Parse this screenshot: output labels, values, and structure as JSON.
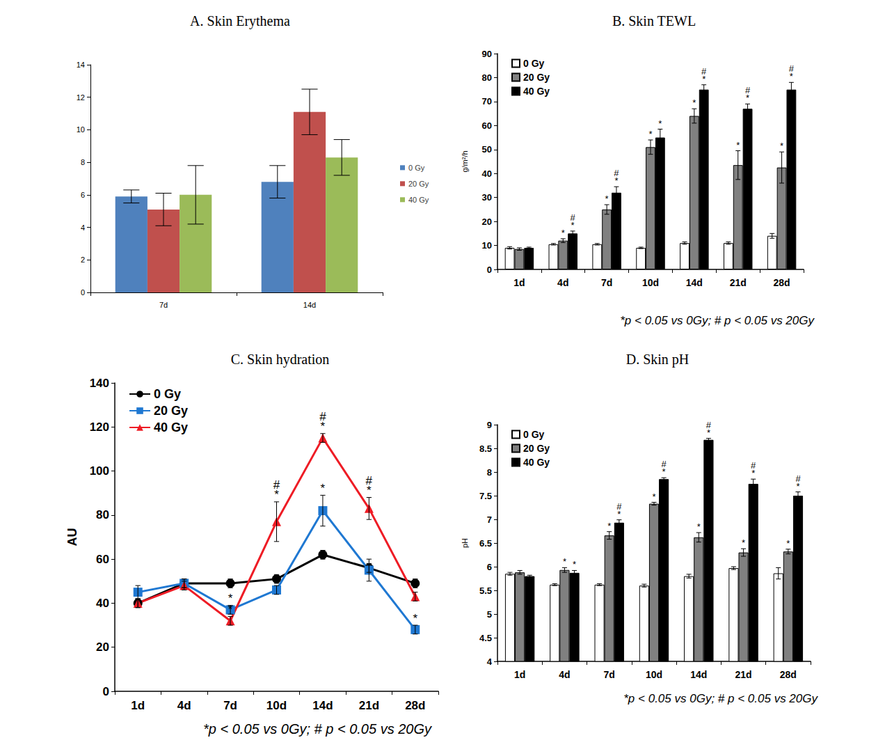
{
  "chart_data": [
    {
      "type": "bar",
      "title": "A. Skin Erythema",
      "categories": [
        "7d",
        "14d"
      ],
      "series": [
        {
          "name": "0 Gy",
          "color": "#4f81bd",
          "values": [
            5.9,
            6.8
          ],
          "errors": [
            0.4,
            1.0
          ]
        },
        {
          "name": "20 Gy",
          "color": "#c0504d",
          "values": [
            5.1,
            11.1
          ],
          "errors": [
            1.0,
            1.4
          ]
        },
        {
          "name": "40 Gy",
          "color": "#9bbb59",
          "values": [
            6.0,
            8.3
          ],
          "errors": [
            1.8,
            1.1
          ]
        }
      ],
      "ylim": [
        0,
        14
      ],
      "yticks": [
        0,
        2,
        4,
        6,
        8,
        10,
        12,
        14
      ],
      "grid": false,
      "legend": "right"
    },
    {
      "type": "bar",
      "title": "B. Skin TEWL",
      "ylabel": "g/m²/h",
      "footnote": "*p < 0.05 vs 0Gy; # p < 0.05 vs 20Gy",
      "categories": [
        "1d",
        "4d",
        "7d",
        "10d",
        "14d",
        "21d",
        "28d"
      ],
      "series": [
        {
          "name": "0 Gy",
          "color": "#ffffff",
          "values": [
            9,
            10.5,
            10.5,
            9,
            11,
            11,
            14
          ],
          "errors": [
            0.5,
            0.3,
            0.3,
            0.3,
            0.5,
            0.5,
            1
          ]
        },
        {
          "name": "20 Gy",
          "color": "#808080",
          "values": [
            8.5,
            12,
            25,
            51,
            64,
            43.5,
            42.5
          ],
          "errors": [
            0.5,
            0.8,
            2,
            3,
            3,
            6,
            6.5
          ],
          "annotations": [
            null,
            "*",
            "*",
            "*",
            "*",
            "*",
            "*"
          ]
        },
        {
          "name": "40 Gy",
          "color": "#000000",
          "values": [
            9,
            15,
            32,
            55,
            75,
            67,
            75
          ],
          "errors": [
            0.3,
            1,
            2.5,
            3.5,
            2,
            2,
            3
          ],
          "annotations": [
            null,
            "#\n*",
            "#\n*",
            "*",
            "#\n*",
            "#\n*",
            "#\n*"
          ]
        }
      ],
      "ylim": [
        0,
        90
      ],
      "yticks": [
        0,
        10,
        20,
        30,
        40,
        50,
        60,
        70,
        80,
        90
      ],
      "grid": false,
      "legend": "upper left"
    },
    {
      "type": "line",
      "title": "C. Skin hydration",
      "ylabel": "AU",
      "footnote": "*p < 0.05 vs 0Gy; # p < 0.05 vs 20Gy",
      "categories": [
        "1d",
        "4d",
        "7d",
        "10d",
        "14d",
        "21d",
        "28d"
      ],
      "series": [
        {
          "name": "0 Gy",
          "color": "#000000",
          "marker": "circle",
          "values": [
            40,
            49,
            49,
            51,
            62,
            56,
            49
          ],
          "errors": [
            2,
            2,
            2,
            2,
            2,
            2,
            2
          ]
        },
        {
          "name": "20 Gy",
          "color": "#1f78d2",
          "marker": "square",
          "values": [
            45,
            49,
            37,
            46,
            82,
            55,
            28
          ],
          "errors": [
            3,
            2,
            2,
            2,
            7,
            5,
            2
          ],
          "annotations": [
            null,
            null,
            "*",
            null,
            "*",
            null,
            "*"
          ]
        },
        {
          "name": "40 Gy",
          "color": "#ee1c25",
          "marker": "triangle",
          "values": [
            40,
            48,
            32,
            77,
            115,
            83,
            43
          ],
          "errors": [
            2,
            2,
            2,
            9,
            2,
            5,
            2
          ],
          "annotations": [
            null,
            null,
            "*",
            "#\n*",
            "#\n*",
            "#\n*",
            null
          ]
        }
      ],
      "ylim": [
        0,
        140
      ],
      "yticks": [
        0,
        20,
        40,
        60,
        80,
        100,
        120,
        140
      ],
      "grid": false,
      "legend": "upper left"
    },
    {
      "type": "bar",
      "title": "D. Skin pH",
      "ylabel": "pH",
      "footnote": "*p < 0.05 vs 0Gy; # p < 0.05 vs 20Gy",
      "categories": [
        "1d",
        "4d",
        "7d",
        "10d",
        "14d",
        "21d",
        "28d"
      ],
      "series": [
        {
          "name": "0 Gy",
          "color": "#ffffff",
          "values": [
            5.85,
            5.62,
            5.62,
            5.6,
            5.8,
            5.97,
            5.86
          ],
          "errors": [
            0.03,
            0.02,
            0.02,
            0.03,
            0.04,
            0.03,
            0.12
          ]
        },
        {
          "name": "20 Gy",
          "color": "#808080",
          "values": [
            5.88,
            5.93,
            6.66,
            7.33,
            6.62,
            6.3,
            6.32
          ],
          "errors": [
            0.04,
            0.05,
            0.08,
            0.03,
            0.1,
            0.08,
            0.05
          ],
          "annotations": [
            null,
            "*",
            "*",
            "*",
            "*",
            "*",
            "*"
          ]
        },
        {
          "name": "40 Gy",
          "color": "#000000",
          "values": [
            5.8,
            5.87,
            6.93,
            7.85,
            8.68,
            7.75,
            7.5
          ],
          "errors": [
            0.02,
            0.05,
            0.06,
            0.03,
            0.03,
            0.1,
            0.08
          ],
          "annotations": [
            null,
            "*",
            "#\n*",
            "#\n*",
            "#\n*",
            "#\n*",
            "#\n*"
          ]
        }
      ],
      "ylim": [
        4,
        9
      ],
      "yticks": [
        4,
        4.5,
        5,
        5.5,
        6,
        6.5,
        7,
        7.5,
        8,
        8.5,
        9
      ],
      "grid": false,
      "legend": "upper left"
    }
  ]
}
